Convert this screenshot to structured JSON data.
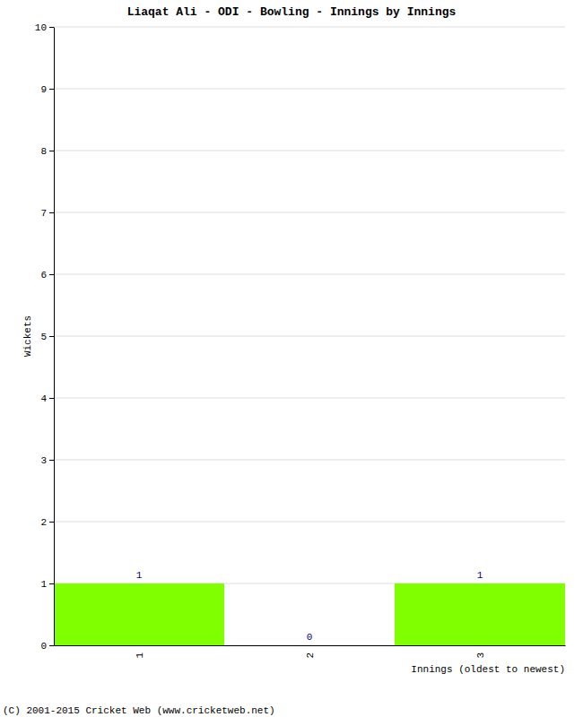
{
  "chart_data": {
    "type": "bar",
    "title": "Liaqat Ali - ODI - Bowling - Innings by Innings",
    "x_label": "Innings (oldest to newest)",
    "y_label": "Wickets",
    "annotations": [
      "(C) 2001-2015 Cricket Web (www.cricketweb.net)"
    ],
    "categories": [
      "1",
      "2",
      "3"
    ],
    "values": [
      1,
      0,
      1
    ],
    "color": "#80ff00",
    "ylim": [
      0,
      10
    ],
    "yticks": [
      0,
      1,
      2,
      3,
      4,
      5,
      6,
      7,
      8,
      9,
      10
    ],
    "grid": true,
    "data_labels": true
  }
}
